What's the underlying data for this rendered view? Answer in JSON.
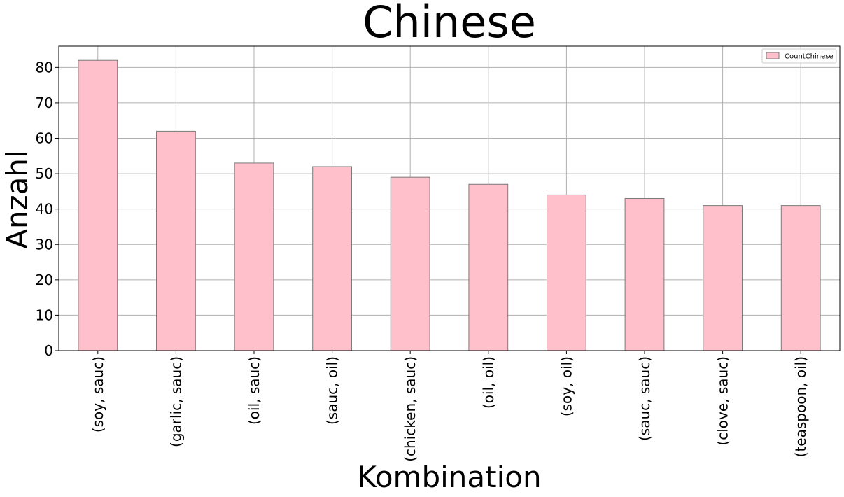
{
  "chart_data": {
    "type": "bar",
    "title": "Chinese",
    "xlabel": "Kombination",
    "ylabel": "Anzahl",
    "categories": [
      "(soy, sauc)",
      "(garlic, sauc)",
      "(oil, sauc)",
      "(sauc, oil)",
      "(chicken, sauc)",
      "(oil, oil)",
      "(soy, oil)",
      "(sauc, sauc)",
      "(clove, sauc)",
      "(teaspoon, oil)"
    ],
    "series": [
      {
        "name": "CountChinese",
        "values": [
          82,
          62,
          53,
          52,
          49,
          47,
          44,
          43,
          41,
          41
        ],
        "color": "#ffc0cb"
      }
    ],
    "ylim": [
      0,
      86
    ],
    "yticks": [
      0,
      10,
      20,
      30,
      40,
      50,
      60,
      70,
      80
    ],
    "grid": true,
    "legend_position": "top-right"
  }
}
